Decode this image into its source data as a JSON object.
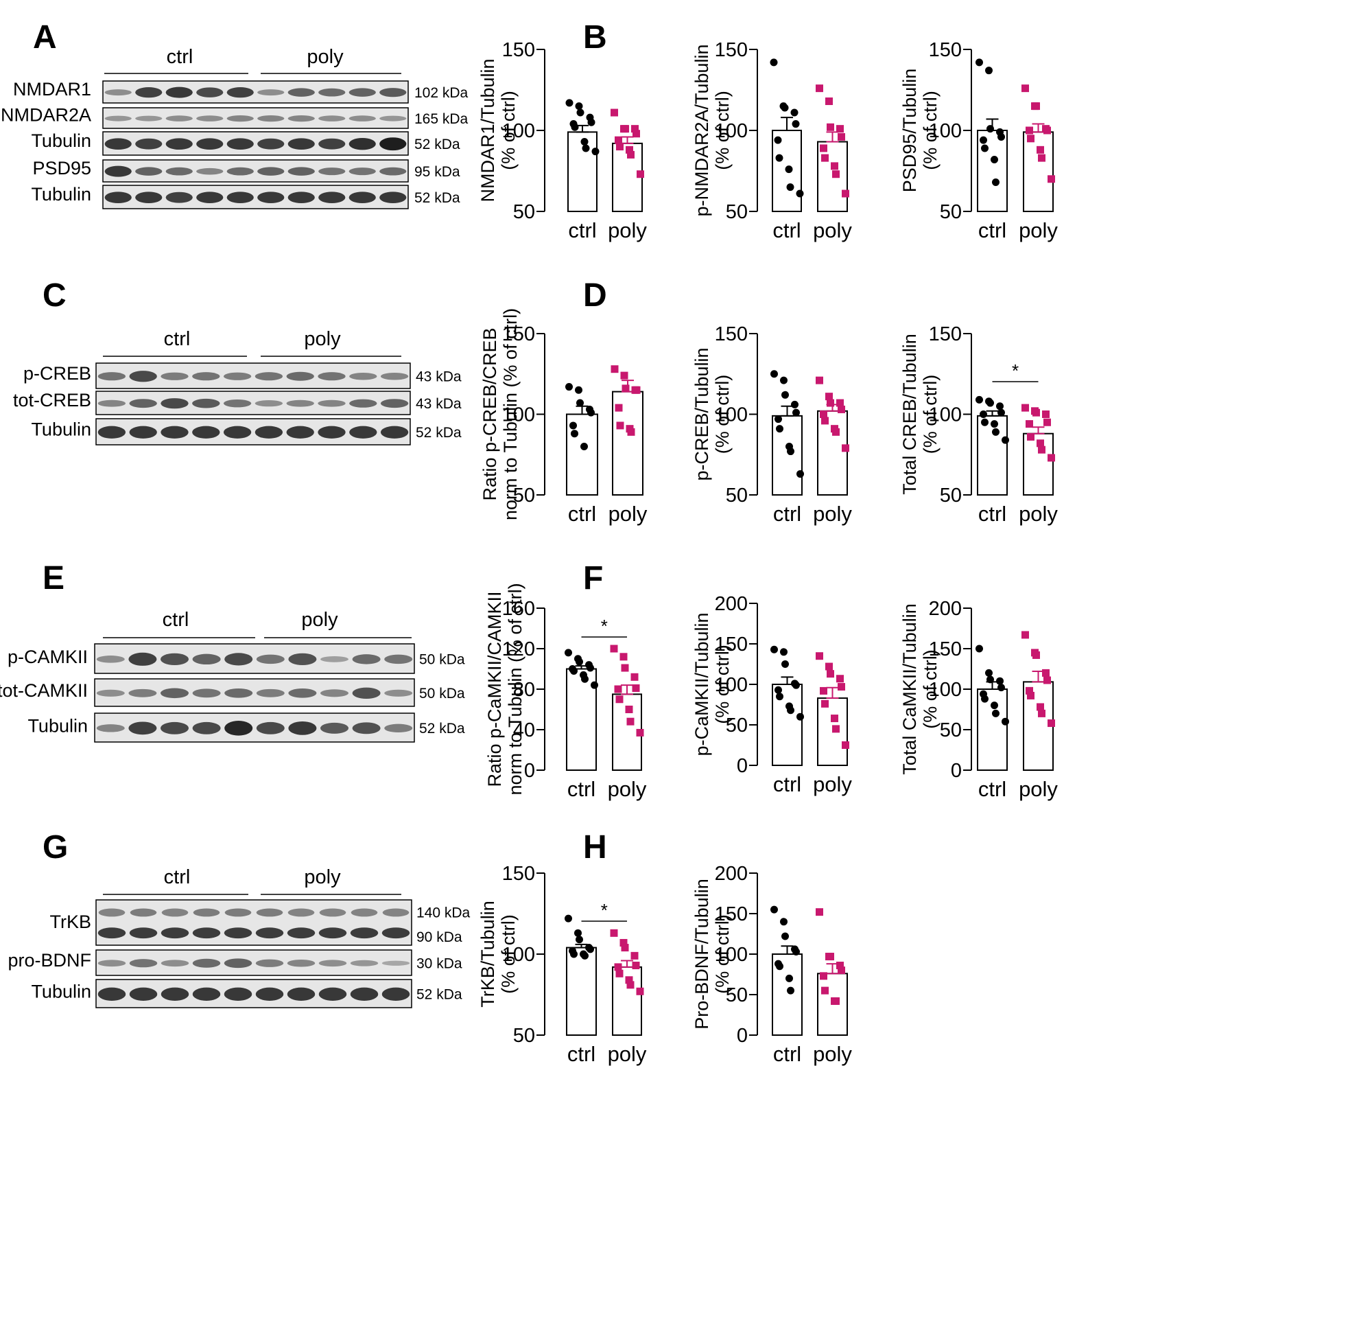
{
  "colors": {
    "ctrl": "#000000",
    "poly": "#c8186e"
  },
  "panel_letters": [
    "A",
    "B",
    "C",
    "D",
    "E",
    "F",
    "G",
    "H"
  ],
  "blots": [
    {
      "group_labels": [
        "ctrl",
        "poly"
      ],
      "rows": [
        {
          "label": "NMDAR1",
          "kda": "102 kDa"
        },
        {
          "label": "p-NMDAR2A",
          "kda": "165 kDa"
        },
        {
          "label": "Tubulin",
          "kda": "52 kDa"
        },
        {
          "label": "PSD95",
          "kda": "95 kDa"
        },
        {
          "label": "Tubulin",
          "kda": "52 kDa"
        }
      ]
    },
    {
      "group_labels": [
        "ctrl",
        "poly"
      ],
      "rows": [
        {
          "label": "p-CREB",
          "kda": "43 kDa"
        },
        {
          "label": "tot-CREB",
          "kda": "43 kDa"
        },
        {
          "label": "Tubulin",
          "kda": "52 kDa"
        }
      ]
    },
    {
      "group_labels": [
        "ctrl",
        "poly"
      ],
      "rows": [
        {
          "label": "p-CAMKII",
          "kda": "50 kDa"
        },
        {
          "label": "tot-CAMKII",
          "kda": "50 kDa"
        },
        {
          "label": "Tubulin",
          "kda": "52 kDa"
        }
      ]
    },
    {
      "group_labels": [
        "ctrl",
        "poly"
      ],
      "rows": [
        {
          "label": "TrKB",
          "kda": "140 kDa",
          "kda2": "90 kDa"
        },
        {
          "label": "pro-BDNF",
          "kda": "30 kDa"
        },
        {
          "label": "Tubulin",
          "kda": "52 kDa"
        }
      ]
    }
  ],
  "chart_data": [
    {
      "type": "bar",
      "panel": "B",
      "ylabel": [
        "NMDAR1/Tubulin",
        "(% of ctrl)"
      ],
      "ylim": [
        50,
        150
      ],
      "yticks": [
        50,
        100,
        150
      ],
      "categories": [
        "ctrl",
        "poly"
      ],
      "means": [
        99,
        92
      ],
      "sem": [
        4,
        4
      ],
      "points": [
        [
          117,
          115,
          111,
          108,
          105,
          104,
          102,
          93,
          89,
          87
        ],
        [
          111,
          101,
          101,
          101,
          98,
          94,
          90,
          88,
          85,
          73
        ]
      ],
      "significance": null
    },
    {
      "type": "bar",
      "panel": "B",
      "ylabel": [
        "p-NMDAR2A/Tubulin",
        "(% of ctrl)"
      ],
      "ylim": [
        50,
        150
      ],
      "yticks": [
        50,
        100,
        150
      ],
      "categories": [
        "ctrl",
        "poly"
      ],
      "means": [
        100,
        93
      ],
      "sem": [
        8,
        6
      ],
      "points": [
        [
          142,
          115,
          114,
          111,
          104,
          94,
          83,
          76,
          65,
          61
        ],
        [
          126,
          118,
          102,
          101,
          96,
          89,
          83,
          78,
          73,
          61
        ]
      ],
      "significance": null
    },
    {
      "type": "bar",
      "panel": "B",
      "ylabel": [
        "PSD95/Tubulin",
        "(% of ctrl)"
      ],
      "ylim": [
        50,
        150
      ],
      "yticks": [
        50,
        100,
        150
      ],
      "categories": [
        "ctrl",
        "poly"
      ],
      "means": [
        100,
        99
      ],
      "sem": [
        7,
        5
      ],
      "points": [
        [
          142,
          137,
          101,
          99,
          96,
          94,
          89,
          82,
          68
        ],
        [
          126,
          115,
          115,
          101,
          100,
          100,
          95,
          88,
          83,
          70
        ]
      ],
      "significance": null
    },
    {
      "type": "bar",
      "panel": "D",
      "ylabel": [
        "Ratio p-CREB/CREB",
        "norm to Tubulin (% of ctrl)"
      ],
      "ylim": [
        50,
        150
      ],
      "yticks": [
        50,
        100,
        150
      ],
      "categories": [
        "ctrl",
        "poly"
      ],
      "means": [
        100,
        114
      ],
      "sem": [
        5,
        7
      ],
      "points": [
        [
          117,
          115,
          107,
          103,
          101,
          93,
          88,
          80
        ],
        [
          128,
          124,
          116,
          115,
          115,
          104,
          93,
          91,
          89
        ]
      ],
      "significance": null
    },
    {
      "type": "bar",
      "panel": "D",
      "ylabel": [
        "p-CREB/Tubulin",
        "(% of ctrl)"
      ],
      "ylim": [
        50,
        150
      ],
      "yticks": [
        50,
        100,
        150
      ],
      "categories": [
        "ctrl",
        "poly"
      ],
      "means": [
        99,
        102
      ],
      "sem": [
        6,
        4
      ],
      "points": [
        [
          125,
          121,
          112,
          106,
          101,
          97,
          91,
          80,
          77,
          63
        ],
        [
          121,
          111,
          107,
          107,
          103,
          100,
          96,
          91,
          89,
          79
        ]
      ],
      "significance": null
    },
    {
      "type": "bar",
      "panel": "D",
      "ylabel": [
        "Total CREB/Tubulin",
        "(% of ctrl)"
      ],
      "ylim": [
        50,
        150
      ],
      "yticks": [
        50,
        100,
        150
      ],
      "categories": [
        "ctrl",
        "poly"
      ],
      "means": [
        99,
        88
      ],
      "sem": [
        3,
        4
      ],
      "points": [
        [
          109,
          108,
          107,
          105,
          101,
          100,
          95,
          94,
          89,
          84
        ],
        [
          104,
          102,
          101,
          100,
          95,
          94,
          86,
          82,
          78,
          73
        ]
      ],
      "significance": "*"
    },
    {
      "type": "bar",
      "panel": "F",
      "ylabel": [
        "Ratio p-CaMKII/CAMKII",
        "norm to  Tubulin (% of ctrl)"
      ],
      "ylim": [
        0,
        160
      ],
      "yticks": [
        0,
        40,
        80,
        120,
        160
      ],
      "categories": [
        "ctrl",
        "poly"
      ],
      "means": [
        100,
        75
      ],
      "sem": [
        3,
        9
      ],
      "points": [
        [
          116,
          110,
          107,
          104,
          101,
          100,
          98,
          94,
          90,
          84
        ],
        [
          120,
          112,
          101,
          92,
          81,
          80,
          70,
          60,
          48,
          37
        ]
      ],
      "significance": "*"
    },
    {
      "type": "bar",
      "panel": "F",
      "ylabel": [
        "p-CaMKII/Tubulin",
        "(% of ctrl)"
      ],
      "ylim": [
        0,
        200
      ],
      "yticks": [
        0,
        50,
        100,
        150,
        200
      ],
      "categories": [
        "ctrl",
        "poly"
      ],
      "means": [
        100,
        83
      ],
      "sem": [
        9,
        13
      ],
      "points": [
        [
          143,
          140,
          125,
          101,
          99,
          93,
          85,
          73,
          68,
          60
        ],
        [
          135,
          122,
          113,
          107,
          97,
          92,
          76,
          58,
          45,
          25
        ]
      ],
      "significance": null
    },
    {
      "type": "bar",
      "panel": "F",
      "ylabel": [
        "Total CaMKII/Tubulin",
        "(% of ctrl)"
      ],
      "ylim": [
        0,
        200
      ],
      "yticks": [
        0,
        50,
        100,
        150,
        200
      ],
      "categories": [
        "ctrl",
        "poly"
      ],
      "means": [
        100,
        109
      ],
      "sem": [
        9,
        13
      ],
      "points": [
        [
          150,
          120,
          112,
          110,
          102,
          94,
          88,
          80,
          70,
          60
        ],
        [
          167,
          145,
          142,
          120,
          111,
          98,
          92,
          78,
          70,
          58
        ]
      ],
      "significance": null
    },
    {
      "type": "bar",
      "panel": "H",
      "ylabel": [
        "TrKB/Tubulin",
        "(% of ctrl)"
      ],
      "ylim": [
        50,
        150
      ],
      "yticks": [
        50,
        100,
        150
      ],
      "categories": [
        "ctrl",
        "poly"
      ],
      "means": [
        104,
        92
      ],
      "sem": [
        2,
        4
      ],
      "points": [
        [
          122,
          113,
          109,
          104,
          103,
          102,
          100,
          100,
          99
        ],
        [
          113,
          107,
          104,
          99,
          93,
          92,
          88,
          84,
          81,
          77
        ]
      ],
      "significance": "*"
    },
    {
      "type": "bar",
      "panel": "H",
      "ylabel": [
        "Pro-BDNF/Tubulin",
        "(% of ctrl)"
      ],
      "ylim": [
        0,
        200
      ],
      "yticks": [
        0,
        50,
        100,
        150,
        200
      ],
      "categories": [
        "ctrl",
        "poly"
      ],
      "means": [
        100,
        76
      ],
      "sem": [
        10,
        12
      ],
      "points": [
        [
          155,
          140,
          122,
          106,
          103,
          88,
          85,
          70,
          55
        ],
        [
          152,
          97,
          97,
          86,
          80,
          73,
          55,
          42,
          42
        ]
      ],
      "significance": null
    }
  ]
}
